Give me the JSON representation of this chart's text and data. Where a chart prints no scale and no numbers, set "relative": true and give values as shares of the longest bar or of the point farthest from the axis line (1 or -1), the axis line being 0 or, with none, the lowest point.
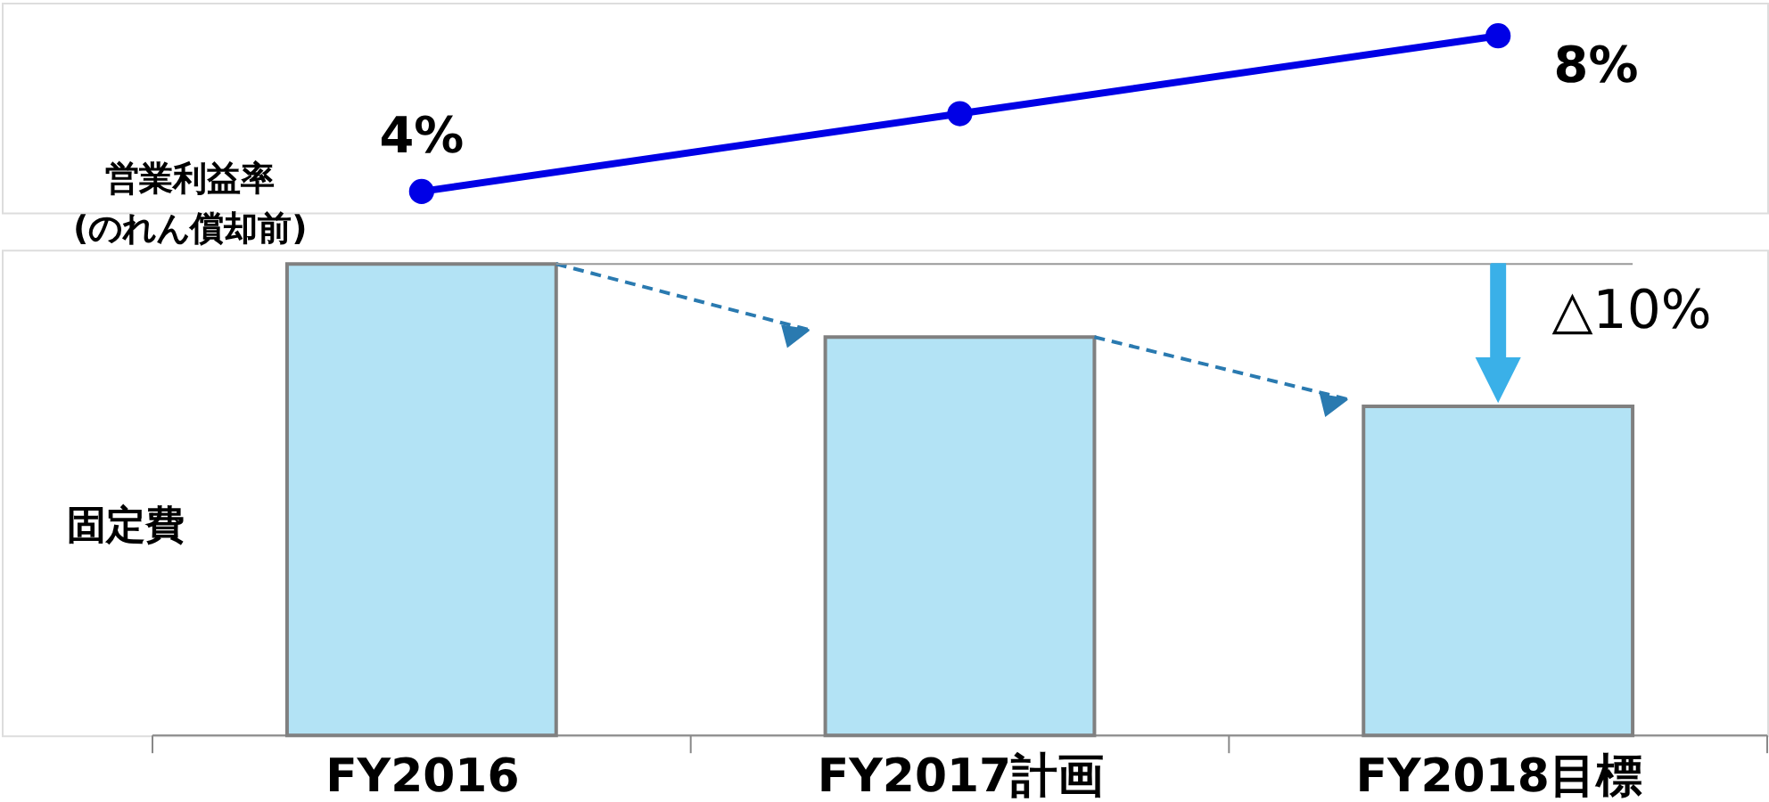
{
  "chart_data": [
    {
      "type": "line",
      "categories": [
        null,
        null,
        null
      ],
      "series": [
        {
          "name": "営業利益率\n(のれん償却前)",
          "color": "#0000e6",
          "values": [
            4,
            6,
            8
          ],
          "value_labels": [
            "4%",
            null,
            "8%"
          ]
        }
      ],
      "marker": "circle",
      "line_style": "solid"
    },
    {
      "type": "bar",
      "relative": true,
      "categories": [
        "FY2016",
        "FY2017計画",
        "FY2018目標"
      ],
      "series": [
        {
          "name": "固定費",
          "color": "#b3e3f5",
          "values": [
            1,
            0.845,
            0.698
          ]
        }
      ],
      "ref_lines": [
        {
          "axis": "y",
          "value": 1,
          "color": "#999999"
        }
      ],
      "annotations": [
        "△10%"
      ]
    }
  ]
}
